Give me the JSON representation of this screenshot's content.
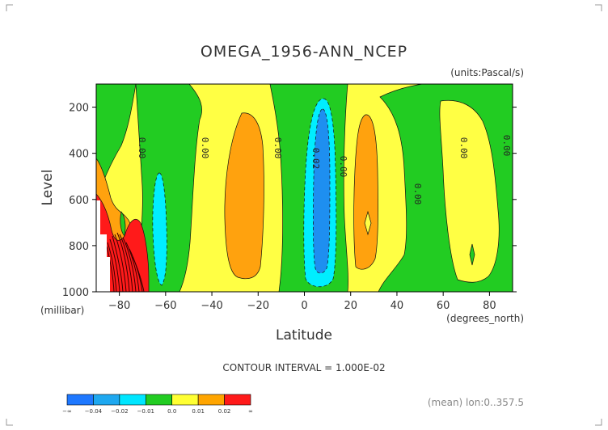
{
  "chart_data": {
    "type": "heatmap",
    "title": "OMEGA_1956-ANN_NCEP",
    "units": "(units:Pascal/s)",
    "xlabel": "Latitude",
    "x_units": "(degrees_north)",
    "ylabel": "Level",
    "y_units": "(millibar)",
    "xlim": [
      -90,
      90
    ],
    "ylim": [
      1000,
      100
    ],
    "x_ticks": [
      "-80",
      "-60",
      "-40",
      "-20",
      "0",
      "20",
      "40",
      "60",
      "80"
    ],
    "y_ticks": [
      "200",
      "400",
      "600",
      "800",
      "1000"
    ],
    "contour_interval": "CONTOUR INTERVAL = 1.000E-02",
    "footer": "(mean) lon:0..357.5",
    "contour_labels": [
      "0.00",
      "0.00",
      "0.00",
      "0.02",
      "0.00",
      "0.00",
      "0.00",
      "0.00"
    ],
    "colorbar": {
      "labels": [
        "-∞",
        "-0.04",
        "-0.02",
        "-0.01",
        "0.0",
        "0.01",
        "0.02",
        "∞"
      ],
      "colors": [
        "#1e78ff",
        "#1ea8f0",
        "#00e6ff",
        "#22cc22",
        "#ffff33",
        "#ffa500",
        "#ff1a1a"
      ]
    },
    "palette": {
      "green": "#22cc22",
      "yellow": "#ffff44",
      "orange": "#ffa20e",
      "cyan": "#00eeff",
      "blue": "#1e8ff0",
      "red": "#ff1a1a",
      "darkred": "#7a0000"
    }
  }
}
